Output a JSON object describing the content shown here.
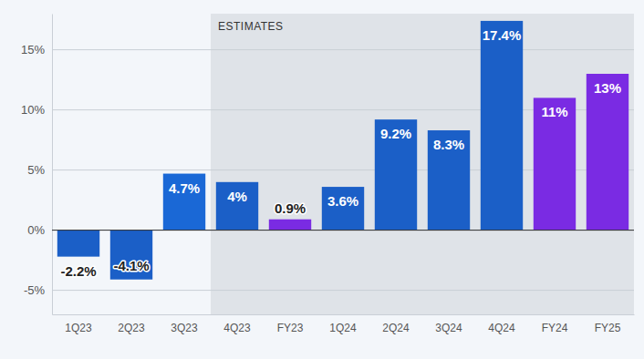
{
  "chart_data": {
    "type": "bar",
    "categories": [
      "1Q23",
      "2Q23",
      "3Q23",
      "4Q23",
      "FY23",
      "1Q24",
      "2Q24",
      "3Q24",
      "4Q24",
      "FY24",
      "FY25"
    ],
    "values": [
      -2.2,
      -4.1,
      4.7,
      4,
      0.9,
      3.6,
      9.2,
      8.3,
      17.4,
      11,
      13
    ],
    "value_labels": [
      "-2.2%",
      "-4.1%",
      "4.7%",
      "4%",
      "0.9%",
      "3.6%",
      "9.2%",
      "8.3%",
      "17.4%",
      "11%",
      "13%"
    ],
    "colors": [
      "#1b5fc7",
      "#1b5fc7",
      "#1a68d6",
      "#1b5fc7",
      "#7a2be3",
      "#1b5fc7",
      "#1b5fc7",
      "#1b5fc7",
      "#1b5fc7",
      "#7a2be3",
      "#7a2be3"
    ],
    "ylim": [
      -7,
      18
    ],
    "yticks": [
      {
        "value": -5,
        "label": "-5%"
      },
      {
        "value": 0,
        "label": "0%"
      },
      {
        "value": 5,
        "label": "5%"
      },
      {
        "value": 10,
        "label": "10%"
      },
      {
        "value": 15,
        "label": "15%"
      }
    ],
    "grid": true,
    "data_labels": true,
    "annotations": [
      {
        "text": "ESTIMATES",
        "start": "4Q23",
        "end": "FY25"
      }
    ]
  }
}
